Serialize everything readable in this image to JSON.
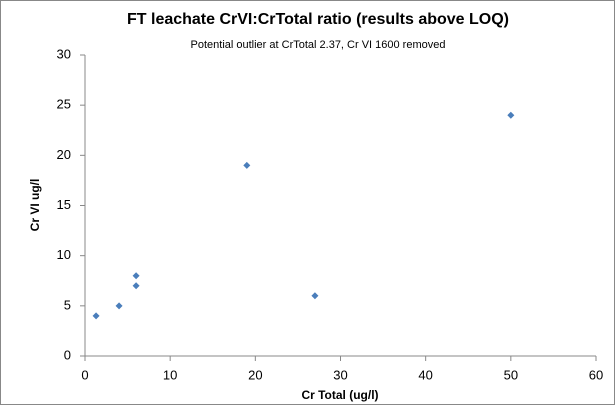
{
  "chart_data": {
    "type": "scatter",
    "title": "FT leachate CrVI:CrTotal ratio (results above LOQ)",
    "subtitle": "Potential outlier at CrTotal 2.37, Cr VI 1600 removed",
    "x_label": "Cr Total (ug/l)",
    "y_label": "Cr VI ug/l",
    "x": [
      1.3,
      4,
      6,
      6,
      19,
      27,
      50
    ],
    "values": [
      4,
      5,
      8,
      7,
      19,
      6,
      24
    ],
    "color": "#4a7ebb",
    "xlim": [
      0,
      60
    ],
    "xticks": [
      0,
      10,
      20,
      30,
      40,
      50,
      60
    ],
    "ylim": [
      0,
      30
    ],
    "yticks": [
      0,
      5,
      10,
      15,
      20,
      25,
      30
    ],
    "grid": false
  }
}
